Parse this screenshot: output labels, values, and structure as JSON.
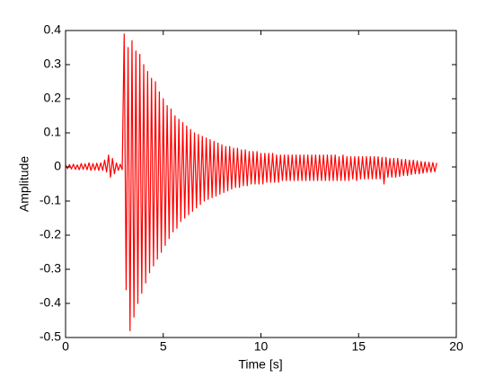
{
  "chart_data": {
    "type": "line",
    "x_label": "Time [s]",
    "y_label": "Amplitude",
    "color": "#ff0000",
    "grid": false,
    "xlim": [
      0,
      20
    ],
    "ylim": [
      -0.5,
      0.4
    ],
    "xticks": [
      0,
      5,
      10,
      15,
      20
    ],
    "yticks": [
      -0.5,
      -0.4,
      -0.3,
      -0.2,
      -0.1,
      0,
      0.1,
      0.2,
      0.3,
      0.4
    ],
    "x": [
      0,
      0.1,
      0.2,
      0.3,
      0.4,
      0.5,
      0.6,
      0.7,
      0.8,
      0.9,
      1,
      1.1,
      1.2,
      1.3,
      1.4,
      1.5,
      1.6,
      1.7,
      1.8,
      1.9,
      2,
      2.1,
      2.2,
      2.3,
      2.4,
      2.5,
      2.6,
      2.7,
      2.8,
      2.9,
      3,
      3.1,
      3.2,
      3.3,
      3.4,
      3.5,
      3.6,
      3.7,
      3.8,
      3.9,
      4,
      4.1,
      4.2,
      4.3,
      4.4,
      4.5,
      4.6,
      4.7,
      4.8,
      4.9,
      5,
      5.1,
      5.2,
      5.3,
      5.4,
      5.5,
      5.6,
      5.7,
      5.8,
      5.9,
      6,
      6.1,
      6.2,
      6.3,
      6.4,
      6.5,
      6.6,
      6.7,
      6.8,
      6.9,
      7,
      7.1,
      7.2,
      7.3,
      7.4,
      7.5,
      7.6,
      7.7,
      7.8,
      7.9,
      8,
      8.1,
      8.2,
      8.3,
      8.4,
      8.5,
      8.6,
      8.7,
      8.8,
      8.9,
      9,
      9.1,
      9.2,
      9.3,
      9.4,
      9.5,
      9.6,
      9.7,
      9.8,
      9.9,
      10,
      10.1,
      10.2,
      10.3,
      10.4,
      10.5,
      10.6,
      10.7,
      10.8,
      10.9,
      11,
      11.1,
      11.2,
      11.3,
      11.4,
      11.5,
      11.6,
      11.7,
      11.8,
      11.9,
      12,
      12.1,
      12.2,
      12.3,
      12.4,
      12.5,
      12.6,
      12.7,
      12.8,
      12.9,
      13,
      13.1,
      13.2,
      13.3,
      13.4,
      13.5,
      13.6,
      13.7,
      13.8,
      13.9,
      14,
      14.1,
      14.2,
      14.3,
      14.4,
      14.5,
      14.6,
      14.7,
      14.8,
      14.9,
      15,
      15.1,
      15.2,
      15.3,
      15.4,
      15.5,
      15.6,
      15.7,
      15.8,
      15.9,
      16,
      16.1,
      16.2,
      16.3,
      16.4,
      16.5,
      16.6,
      16.7,
      16.8,
      16.9,
      17,
      17.1,
      17.2,
      17.3,
      17.4,
      17.5,
      17.6,
      17.7,
      17.8,
      17.9,
      18,
      18.1,
      18.2,
      18.3,
      18.4,
      18.5,
      18.6,
      18.7,
      18.8,
      18.9,
      19
    ],
    "values": [
      0.006,
      -0.005,
      0.007,
      -0.006,
      0.008,
      -0.007,
      0.006,
      -0.008,
      0.01,
      -0.007,
      0.009,
      -0.008,
      0.012,
      -0.01,
      0.01,
      -0.009,
      0.011,
      -0.01,
      0.012,
      -0.01,
      0.02,
      -0.015,
      0.035,
      -0.03,
      0.025,
      -0.02,
      0.012,
      -0.01,
      0.008,
      -0.008,
      0.39,
      -0.36,
      0.35,
      -0.48,
      0.37,
      -0.44,
      0.34,
      -0.4,
      0.33,
      -0.37,
      0.3,
      -0.34,
      0.28,
      -0.31,
      0.26,
      -0.29,
      0.25,
      -0.27,
      0.22,
      -0.25,
      0.2,
      -0.23,
      0.18,
      -0.21,
      0.17,
      -0.19,
      0.15,
      -0.18,
      0.14,
      -0.16,
      0.13,
      -0.15,
      0.12,
      -0.14,
      0.11,
      -0.13,
      0.1,
      -0.12,
      0.095,
      -0.11,
      0.09,
      -0.1,
      0.085,
      -0.095,
      0.08,
      -0.09,
      0.075,
      -0.085,
      0.07,
      -0.08,
      0.065,
      -0.075,
      0.06,
      -0.07,
      0.06,
      -0.065,
      0.055,
      -0.06,
      0.055,
      -0.06,
      0.05,
      -0.055,
      0.05,
      -0.055,
      0.045,
      -0.05,
      0.045,
      -0.05,
      0.045,
      -0.05,
      0.04,
      -0.05,
      0.04,
      -0.045,
      0.04,
      -0.045,
      0.04,
      -0.045,
      0.035,
      -0.045,
      0.035,
      -0.04,
      0.035,
      -0.04,
      0.035,
      -0.04,
      0.035,
      -0.04,
      0.035,
      -0.04,
      0.035,
      -0.04,
      0.035,
      -0.04,
      0.035,
      -0.04,
      0.035,
      -0.04,
      0.035,
      -0.04,
      0.035,
      -0.04,
      0.035,
      -0.04,
      0.035,
      -0.04,
      0.035,
      -0.04,
      0.035,
      -0.04,
      0.03,
      -0.04,
      0.035,
      -0.04,
      0.03,
      -0.04,
      0.03,
      -0.035,
      0.03,
      -0.04,
      0.03,
      -0.035,
      0.03,
      -0.035,
      0.03,
      -0.035,
      0.03,
      -0.035,
      0.03,
      -0.035,
      0.03,
      -0.035,
      0.028,
      -0.05,
      0.028,
      -0.03,
      0.025,
      -0.03,
      0.025,
      -0.03,
      0.025,
      -0.028,
      0.022,
      -0.025,
      0.022,
      -0.025,
      0.02,
      -0.022,
      0.02,
      -0.02,
      0.018,
      -0.02,
      0.016,
      -0.018,
      0.015,
      -0.016,
      0.014,
      -0.015,
      0.013,
      -0.014,
      0.012
    ]
  }
}
